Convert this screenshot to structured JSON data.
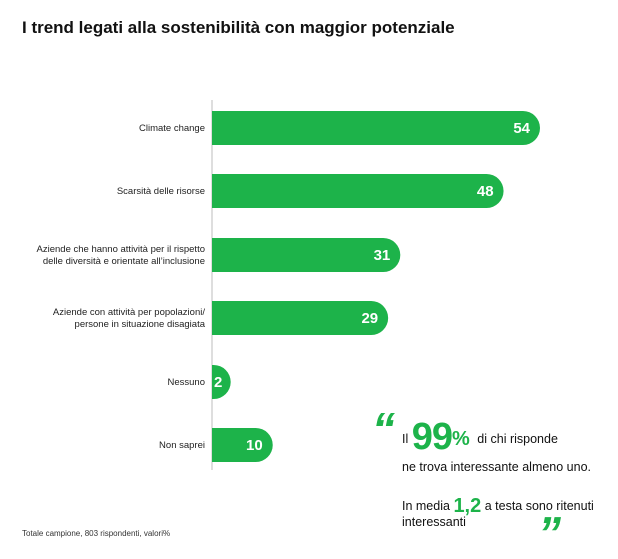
{
  "chart_data": {
    "type": "bar",
    "orientation": "horizontal",
    "title": "I trend legati alla sostenibilità con maggior potenziale",
    "categories": [
      [
        "Climate change"
      ],
      [
        "Scarsità delle risorse"
      ],
      [
        "Aziende che hanno attività per il rispetto",
        "delle diversità e orientate all’inclusione"
      ],
      [
        "Aziende con attività per popolazioni/",
        "persone in situazione disagiata"
      ],
      [
        "Nessuno"
      ],
      [
        "Non saprei"
      ]
    ],
    "values": [
      54,
      48,
      31,
      29,
      2,
      10
    ],
    "xlim": [
      0,
      54
    ],
    "bar_color": "#1db34a",
    "grid": false,
    "footnote": "Totale campione, 803 rispondenti, valori%"
  },
  "callout": {
    "open_quote": "“",
    "close_quote": "”",
    "prefix": "Il",
    "big_value": "99",
    "percent": "%",
    "text1_rest": "di chi risponde",
    "text1_cont": "ne trova interessante almeno uno.",
    "text2_prefix": "In media",
    "text2_value": "1,2",
    "text2_rest": "a testa sono ritenuti interessanti"
  }
}
